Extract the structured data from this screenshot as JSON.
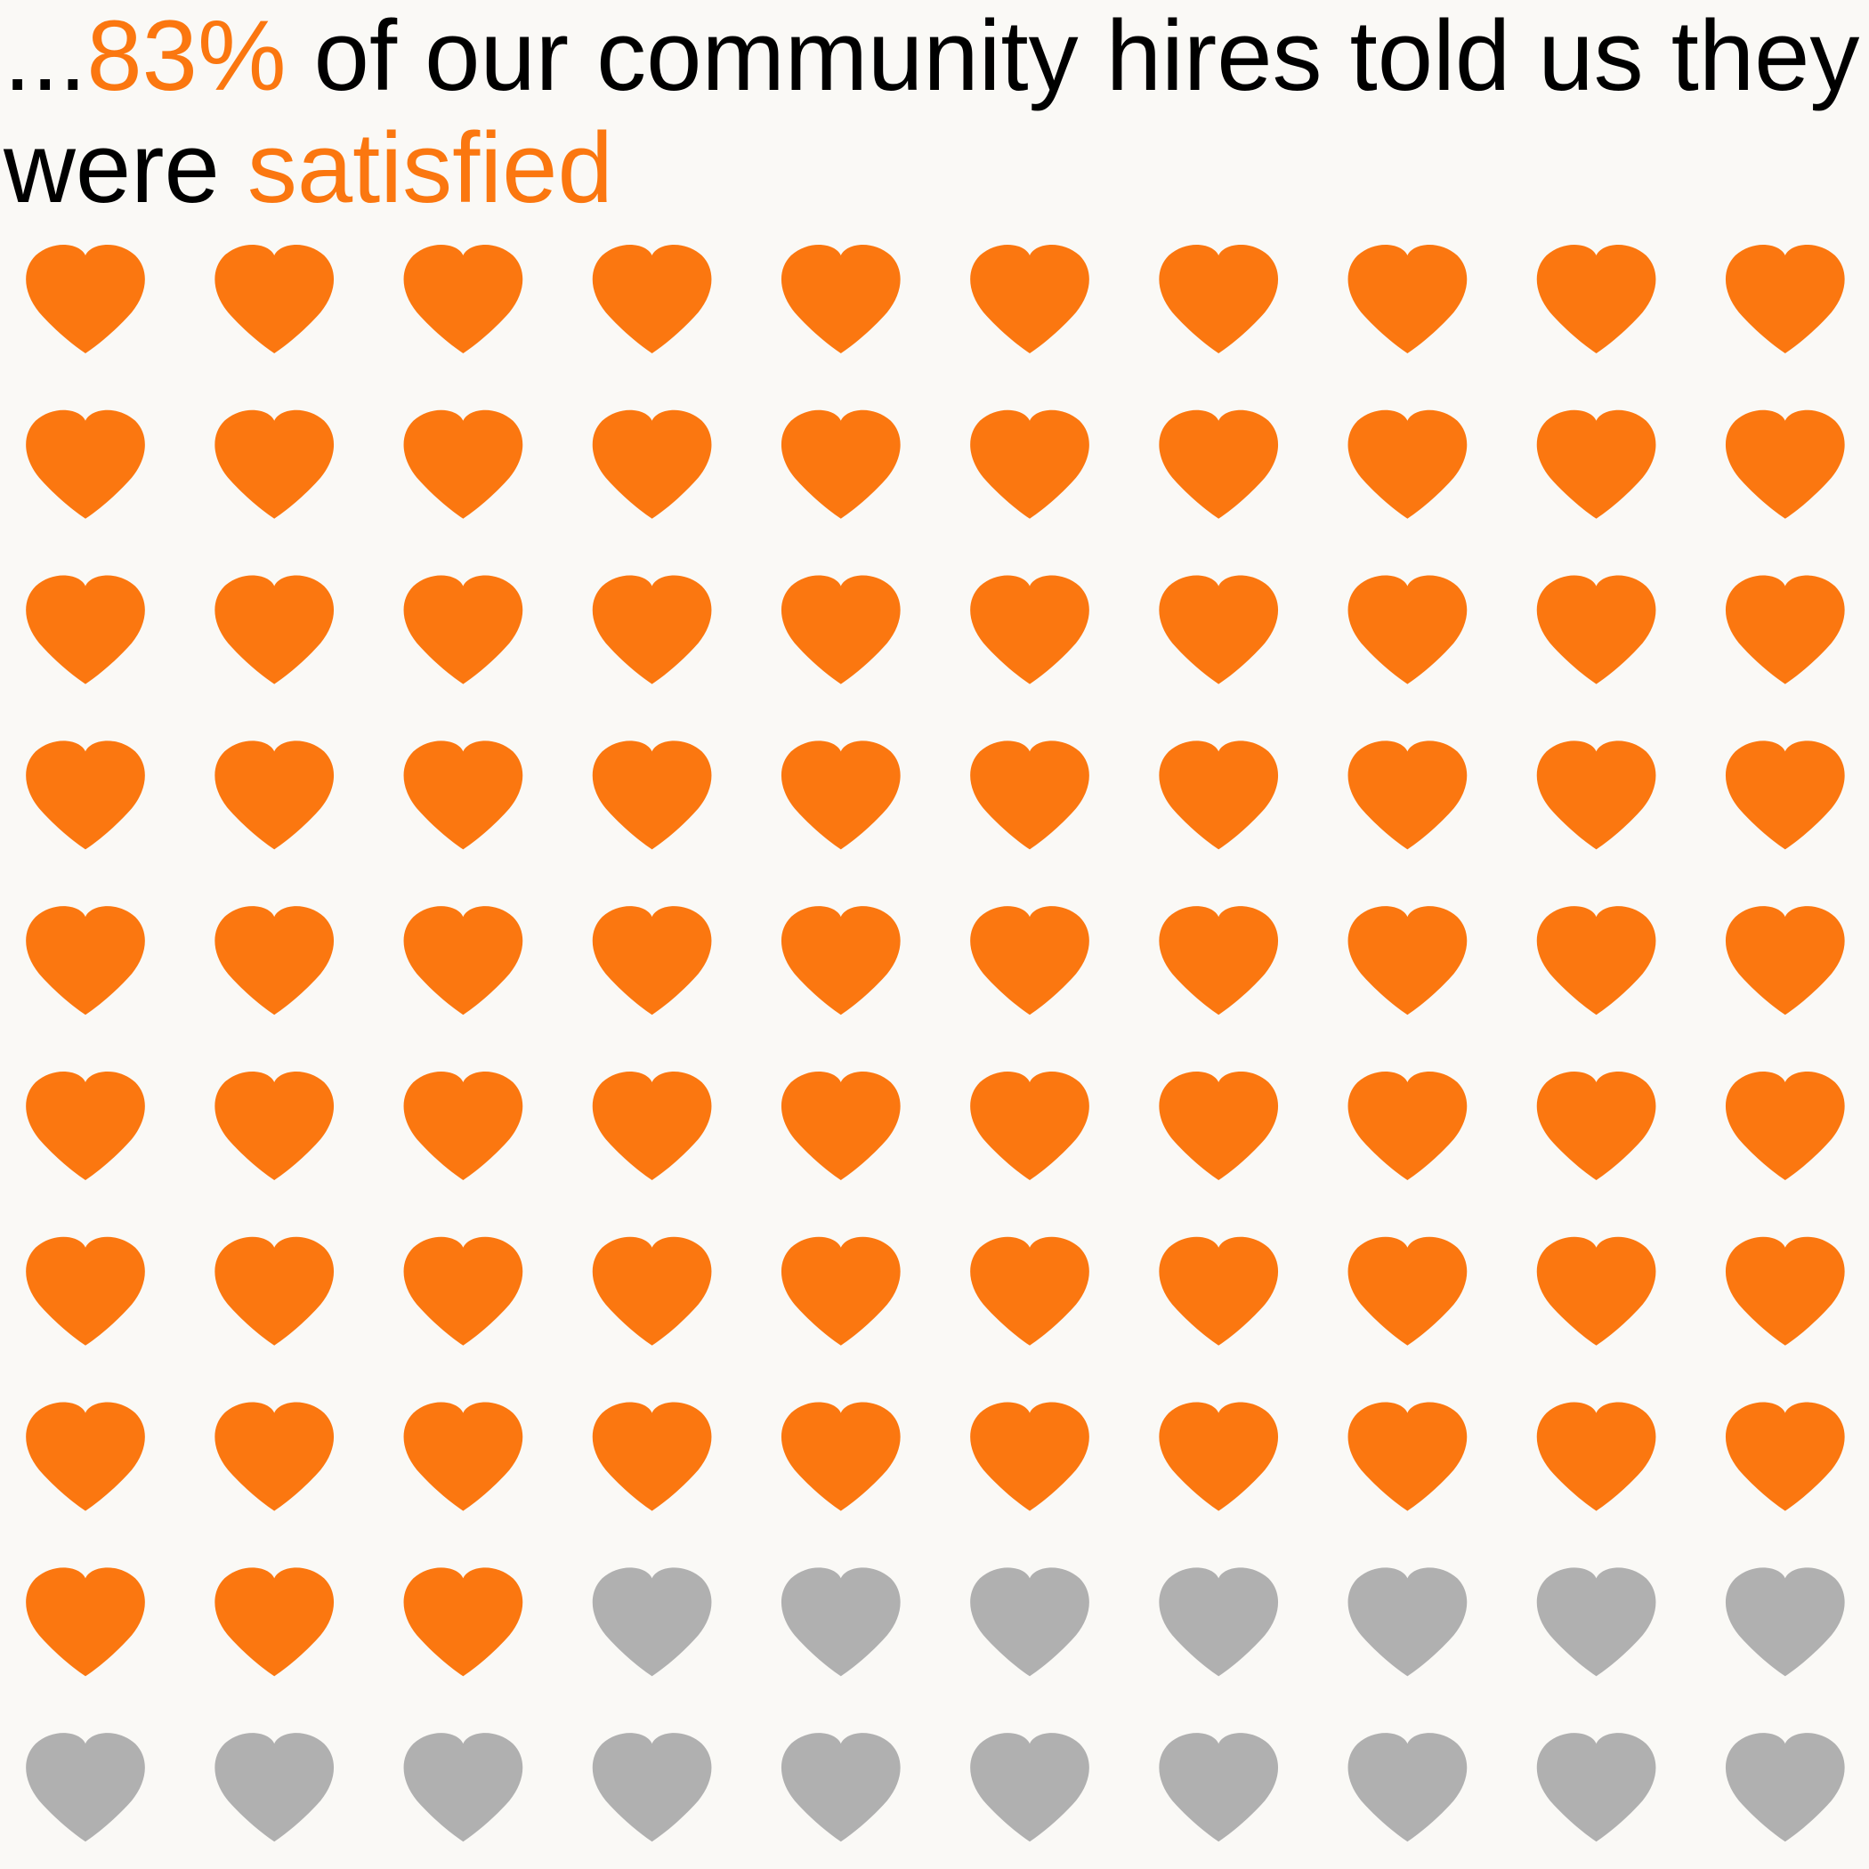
{
  "headline": {
    "prefix": "...",
    "percent": "83%",
    "middle": " of our community hires told us they were ",
    "highlight": "satisfied"
  },
  "chart_data": {
    "type": "waffle",
    "total": 100,
    "filled": 83,
    "columns": 10,
    "rows": 10,
    "filled_color": "#fb7710",
    "empty_color": "#b0b0b0",
    "icon": "heart-icon"
  }
}
